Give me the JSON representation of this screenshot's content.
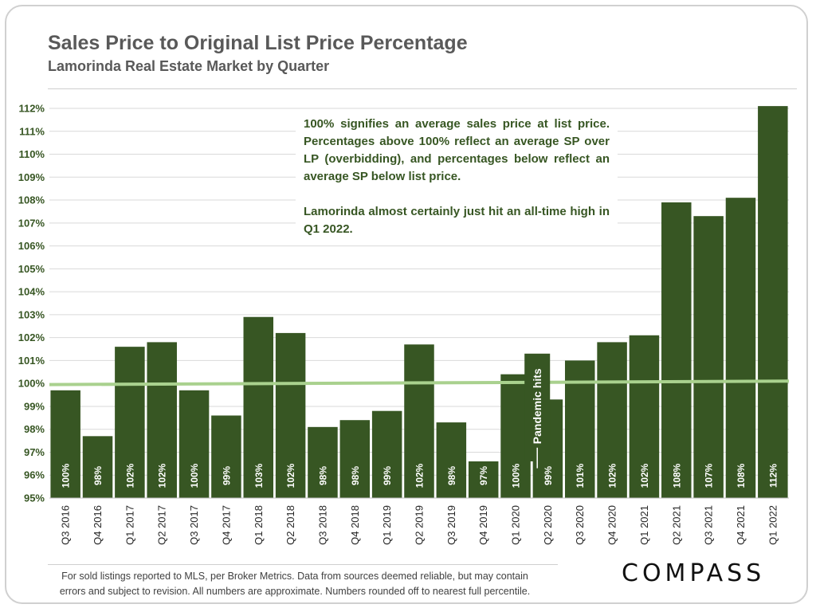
{
  "header": {
    "title": "Sales Price to Original List Price Percentage",
    "subtitle": "Lamorinda Real Estate Market by Quarter"
  },
  "note": {
    "paragraph1": "100% signifies an average sales price at list price. Percentages above 100% reflect an average SP over LP (overbidding), and percentages below reflect an average SP below list price.",
    "paragraph2": "Lamorinda almost certainly just hit an all-time high in Q1 2022."
  },
  "footer": {
    "line1": "For sold listings reported to MLS, per Broker Metrics. Data from sources deemed reliable, but may contain",
    "line2": "errors and subject to revision. All numbers are approximate. Numbers rounded off to nearest full percentile.",
    "logo": "COMPASS"
  },
  "colors": {
    "bar": "#375623",
    "label": "#ffffff",
    "trend": "#a9d18e",
    "axis_text": "#375623",
    "grid": "#d9d9d9"
  },
  "chart_data": {
    "type": "bar",
    "title": "Sales Price to Original List Price Percentage",
    "subtitle": "Lamorinda Real Estate Market by Quarter",
    "categories": [
      "Q3 2016",
      "Q4 2016",
      "Q1 2017",
      "Q2 2017",
      "Q3 2017",
      "Q4 2017",
      "Q1 2018",
      "Q2 2018",
      "Q3 2018",
      "Q4 2018",
      "Q1 2019",
      "Q2 2019",
      "Q3 2019",
      "Q4 2019",
      "Q1 2020",
      "Q2 2020",
      "Q3 2020",
      "Q4 2020",
      "Q1 2021",
      "Q2 2021",
      "Q3 2021",
      "Q4 2021",
      "Q1 2022"
    ],
    "values": [
      99.7,
      97.7,
      101.6,
      101.8,
      99.7,
      98.6,
      102.9,
      102.2,
      98.1,
      98.4,
      98.8,
      101.7,
      98.3,
      96.6,
      100.4,
      99.3,
      101.0,
      101.8,
      102.1,
      107.9,
      107.3,
      108.1,
      112.1
    ],
    "data_labels": [
      "100%",
      "98%",
      "102%",
      "102%",
      "100%",
      "99%",
      "103%",
      "102%",
      "98%",
      "98%",
      "99%",
      "102%",
      "98%",
      "97%",
      "100%",
      "99%",
      "101%",
      "102%",
      "102%",
      "108%",
      "107%",
      "108%",
      "112%"
    ],
    "ylim": [
      95,
      112
    ],
    "yticks": [
      95,
      96,
      97,
      98,
      99,
      100,
      101,
      102,
      103,
      104,
      105,
      106,
      107,
      108,
      109,
      110,
      111,
      112
    ],
    "ytick_suffix": "%",
    "grid": true,
    "trendline": {
      "from": 99.95,
      "to": 100.1
    },
    "annotation": {
      "text": "Pandemic hits",
      "category": "Q2 2020",
      "top_value": 101.3
    },
    "xlabel": "",
    "ylabel": ""
  }
}
